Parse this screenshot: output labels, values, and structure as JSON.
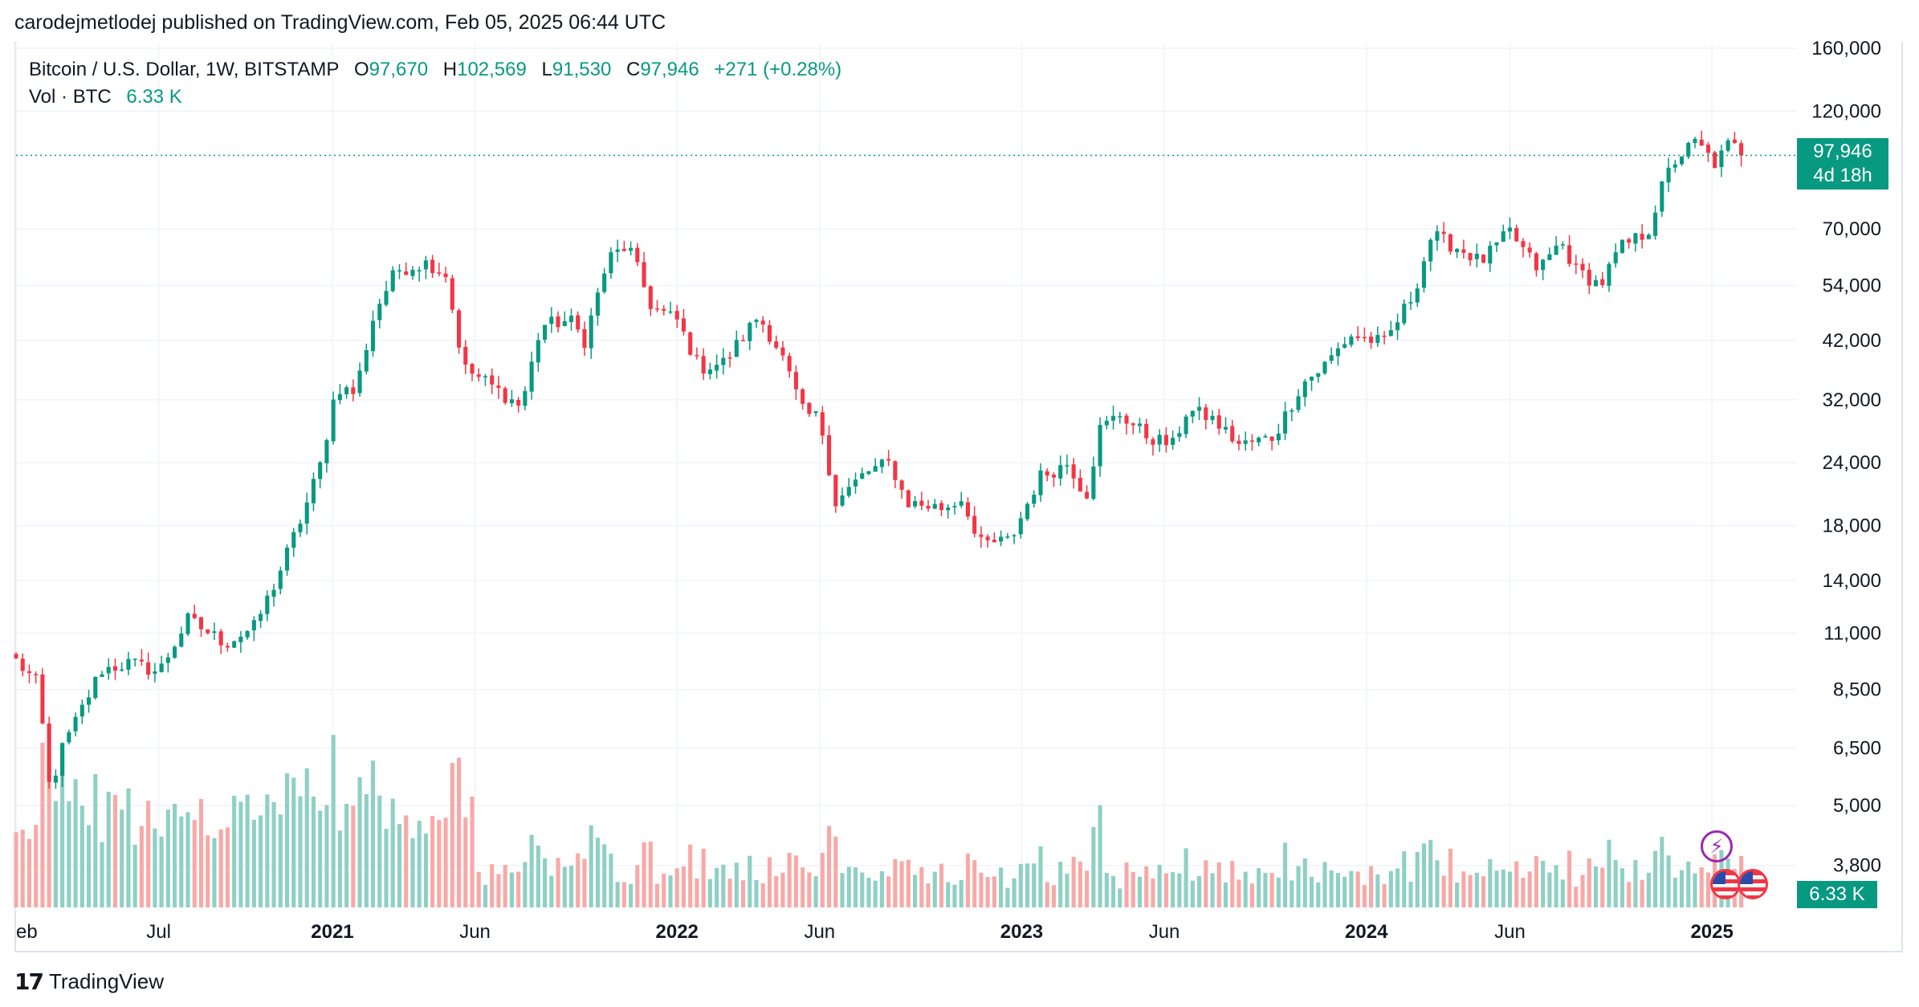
{
  "publisher": "carodejmetlodej published on TradingView.com, Feb 05, 2025 06:44 UTC",
  "brand": {
    "mark": "17",
    "name": "TradingView"
  },
  "legend": {
    "symbol": "Bitcoin / U.S. Dollar, 1W, BITSTAMP",
    "open_label": "O",
    "open": "97,670",
    "high_label": "H",
    "high": "102,569",
    "low_label": "L",
    "low": "91,530",
    "close_label": "C",
    "close": "97,946",
    "change": "+271 (+0.28%)",
    "vol_label": "Vol · BTC",
    "vol": "6.33 K"
  },
  "price_tag": {
    "price": "97,946",
    "countdown": "4d 18h"
  },
  "vol_tag": "6.33 K",
  "colors": {
    "up": "#089981",
    "down": "#f23645",
    "up_vol": "#8fd0c4",
    "down_vol": "#f7a9a7",
    "grid": "#f0f3fa",
    "text": "#131722"
  },
  "icons": [
    "flash-icon",
    "us-flag-icon",
    "us-flag-icon"
  ],
  "chart_data": {
    "type": "candlestick",
    "title": "Bitcoin / U.S. Dollar, 1W, BITSTAMP",
    "y_scale": "log",
    "y_ticks": [
      160000,
      120000,
      70000,
      54000,
      42000,
      32000,
      24000,
      18000,
      14000,
      11000,
      8500,
      6500,
      5000,
      3800
    ],
    "y_tick_labels": [
      "160,000",
      "120,000",
      "70,000",
      "54,000",
      "42,000",
      "32,000",
      "24,000",
      "18,000",
      "14,000",
      "11,000",
      "8,500",
      "6,500",
      "5,000",
      "3,800"
    ],
    "x_ticks": [
      {
        "date": "2020-02-01",
        "label": "eb",
        "bold": false
      },
      {
        "date": "2020-07-01",
        "label": "Jul",
        "bold": false
      },
      {
        "date": "2021-01-01",
        "label": "2021",
        "bold": true
      },
      {
        "date": "2021-06-01",
        "label": "Jun",
        "bold": false
      },
      {
        "date": "2022-01-01",
        "label": "2022",
        "bold": true
      },
      {
        "date": "2022-06-01",
        "label": "Jun",
        "bold": false
      },
      {
        "date": "2023-01-01",
        "label": "2023",
        "bold": true
      },
      {
        "date": "2023-06-01",
        "label": "Jun",
        "bold": false
      },
      {
        "date": "2024-01-01",
        "label": "2024",
        "bold": true
      },
      {
        "date": "2024-06-01",
        "label": "Jun",
        "bold": false
      },
      {
        "date": "2025-01-01",
        "label": "2025",
        "bold": true
      }
    ],
    "x_range": [
      "2020-02-01",
      "2025-04-01"
    ],
    "last_price": 97946,
    "grid": true,
    "ohlc_key_points": [
      {
        "date": "2020-02-01",
        "close": 9700
      },
      {
        "date": "2020-02-24",
        "close": 8700
      },
      {
        "date": "2020-03-09",
        "close": 5100
      },
      {
        "date": "2020-03-16",
        "close": 6200
      },
      {
        "date": "2020-05-01",
        "close": 9300
      },
      {
        "date": "2020-06-01",
        "close": 9600
      },
      {
        "date": "2020-07-01",
        "close": 9200
      },
      {
        "date": "2020-08-01",
        "close": 11700
      },
      {
        "date": "2020-09-10",
        "close": 10500
      },
      {
        "date": "2020-10-10",
        "close": 11300
      },
      {
        "date": "2020-11-01",
        "close": 13800
      },
      {
        "date": "2020-12-01",
        "close": 19000
      },
      {
        "date": "2020-12-20",
        "close": 24000
      },
      {
        "date": "2021-01-05",
        "close": 34000
      },
      {
        "date": "2021-01-25",
        "close": 33000
      },
      {
        "date": "2021-02-15",
        "close": 48000
      },
      {
        "date": "2021-03-10",
        "close": 58000
      },
      {
        "date": "2021-04-12",
        "close": 60000
      },
      {
        "date": "2021-05-01",
        "close": 57000
      },
      {
        "date": "2021-05-20",
        "close": 37000
      },
      {
        "date": "2021-06-10",
        "close": 35000
      },
      {
        "date": "2021-07-20",
        "close": 31000
      },
      {
        "date": "2021-08-10",
        "close": 45000
      },
      {
        "date": "2021-09-10",
        "close": 46000
      },
      {
        "date": "2021-09-25",
        "close": 42000
      },
      {
        "date": "2021-10-20",
        "close": 61000
      },
      {
        "date": "2021-11-10",
        "close": 65000
      },
      {
        "date": "2021-12-05",
        "close": 49000
      },
      {
        "date": "2022-01-01",
        "close": 46000
      },
      {
        "date": "2022-01-25",
        "close": 37000
      },
      {
        "date": "2022-02-20",
        "close": 38000
      },
      {
        "date": "2022-03-28",
        "close": 47000
      },
      {
        "date": "2022-04-20",
        "close": 40000
      },
      {
        "date": "2022-05-15",
        "close": 30000
      },
      {
        "date": "2022-06-01",
        "close": 29500
      },
      {
        "date": "2022-06-18",
        "close": 20000
      },
      {
        "date": "2022-07-20",
        "close": 23000
      },
      {
        "date": "2022-08-15",
        "close": 24000
      },
      {
        "date": "2022-09-01",
        "close": 20000
      },
      {
        "date": "2022-10-10",
        "close": 19500
      },
      {
        "date": "2022-11-01",
        "close": 20500
      },
      {
        "date": "2022-11-15",
        "close": 16500
      },
      {
        "date": "2022-12-20",
        "close": 16800
      },
      {
        "date": "2023-01-20",
        "close": 22500
      },
      {
        "date": "2023-02-20",
        "close": 24000
      },
      {
        "date": "2023-03-10",
        "close": 20500
      },
      {
        "date": "2023-03-25",
        "close": 28000
      },
      {
        "date": "2023-04-15",
        "close": 30000
      },
      {
        "date": "2023-05-15",
        "close": 27000
      },
      {
        "date": "2023-06-10",
        "close": 26000
      },
      {
        "date": "2023-06-25",
        "close": 30500
      },
      {
        "date": "2023-07-20",
        "close": 29500
      },
      {
        "date": "2023-08-20",
        "close": 26000
      },
      {
        "date": "2023-09-25",
        "close": 27000
      },
      {
        "date": "2023-10-25",
        "close": 34500
      },
      {
        "date": "2023-11-15",
        "close": 37000
      },
      {
        "date": "2023-12-15",
        "close": 43000
      },
      {
        "date": "2024-01-20",
        "close": 41500
      },
      {
        "date": "2024-02-20",
        "close": 52000
      },
      {
        "date": "2024-03-10",
        "close": 68000
      },
      {
        "date": "2024-04-15",
        "close": 63000
      },
      {
        "date": "2024-05-01",
        "close": 60000
      },
      {
        "date": "2024-06-01",
        "close": 69000
      },
      {
        "date": "2024-07-01",
        "close": 58000
      },
      {
        "date": "2024-07-25",
        "close": 66000
      },
      {
        "date": "2024-08-10",
        "close": 58000
      },
      {
        "date": "2024-09-05",
        "close": 54000
      },
      {
        "date": "2024-09-25",
        "close": 64000
      },
      {
        "date": "2024-10-25",
        "close": 69000
      },
      {
        "date": "2024-11-12",
        "close": 88000
      },
      {
        "date": "2024-11-25",
        "close": 97000
      },
      {
        "date": "2024-12-15",
        "close": 104000
      },
      {
        "date": "2025-01-05",
        "close": 94000
      },
      {
        "date": "2025-01-20",
        "close": 104000
      },
      {
        "date": "2025-02-03",
        "close": 97946
      }
    ],
    "volume_note": "weekly volume bars, axis unlabeled"
  }
}
